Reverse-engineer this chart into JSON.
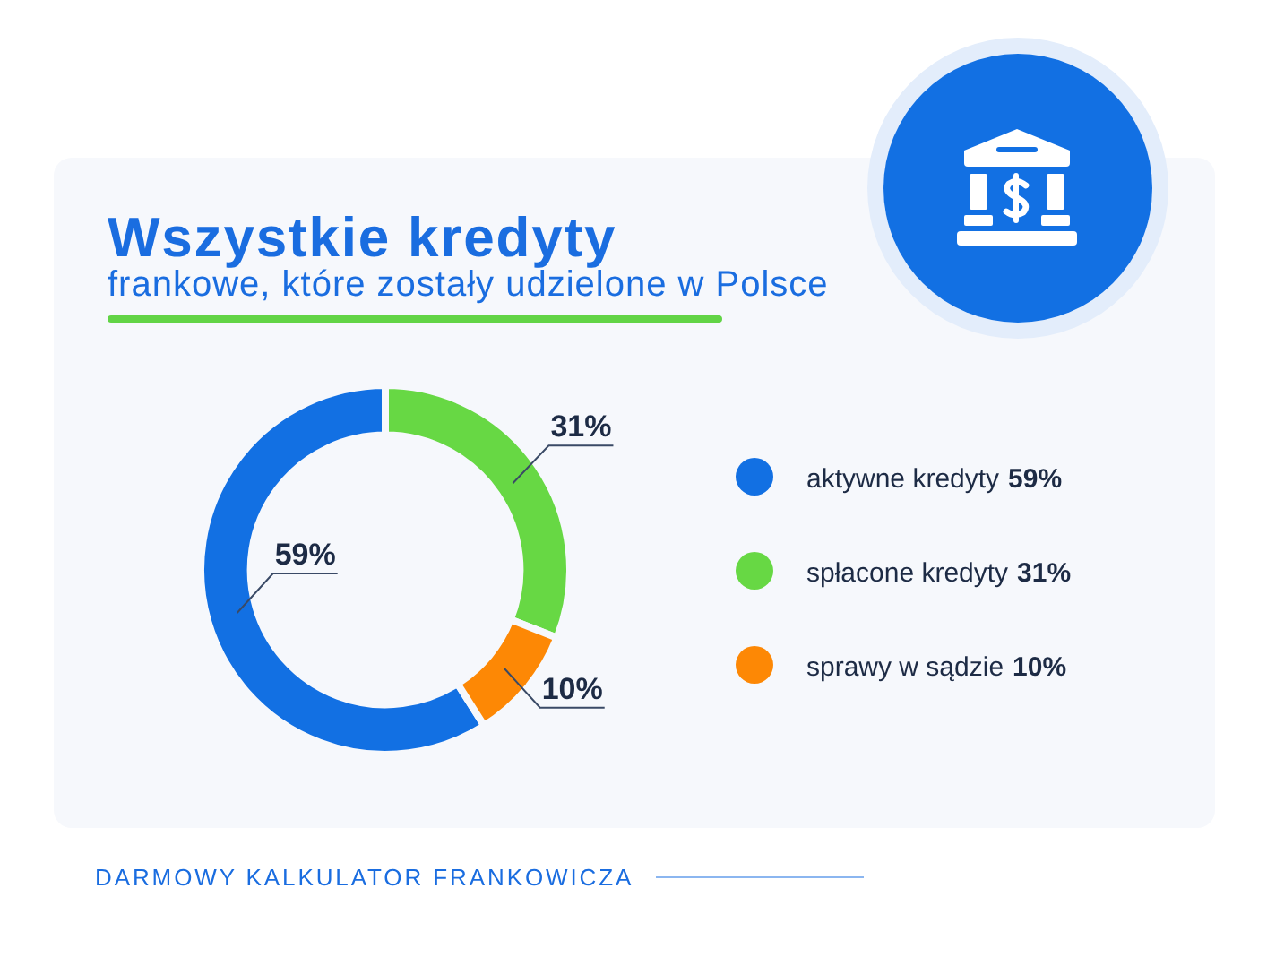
{
  "chart_data": {
    "type": "donut",
    "title": "Wszystkie kredyty",
    "subtitle": "frankowe, które zostały udzielone w Polsce",
    "categories": [
      "aktywne kredyty",
      "spłacone kredyty",
      "sprawy w sądzie"
    ],
    "values": [
      59,
      31,
      10
    ],
    "colors": [
      "#1270e3",
      "#67d844",
      "#fd8805"
    ],
    "value_labels": [
      "59%",
      "31%",
      "10%"
    ],
    "legend": "right",
    "annotations": [
      "DARMOWY KALKULATOR FRANKOWICZA"
    ]
  }
}
